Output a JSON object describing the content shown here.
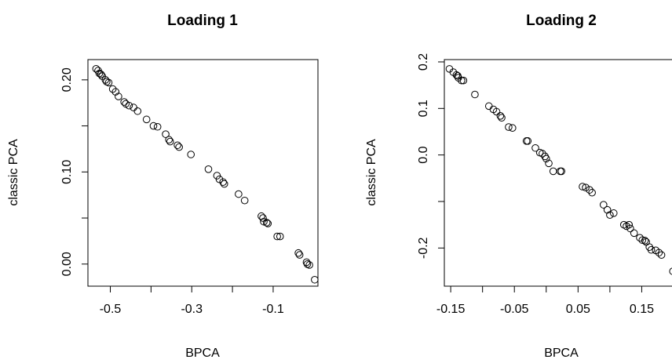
{
  "chart_data": [
    {
      "type": "scatter",
      "title": "Loading 1",
      "xlabel": "BPCA",
      "ylabel": "classic PCA",
      "xlim": [
        -0.555,
        0.01
      ],
      "ylim": [
        -0.024,
        0.222
      ],
      "xticks": [
        -0.5,
        -0.3,
        -0.1
      ],
      "xtick_labels": [
        "-0.5",
        "-0.3",
        "-0.1"
      ],
      "yticks": [
        0.0,
        0.1,
        0.2
      ],
      "ytick_labels": [
        "0.00",
        "0.10",
        "0.20"
      ],
      "grid": false,
      "legend": "none",
      "points": [
        [
          -0.535,
          0.212
        ],
        [
          -0.53,
          0.21
        ],
        [
          -0.527,
          0.207
        ],
        [
          -0.523,
          0.206
        ],
        [
          -0.52,
          0.204
        ],
        [
          -0.512,
          0.2
        ],
        [
          -0.509,
          0.198
        ],
        [
          -0.504,
          0.197
        ],
        [
          -0.494,
          0.19
        ],
        [
          -0.487,
          0.187
        ],
        [
          -0.48,
          0.182
        ],
        [
          -0.466,
          0.176
        ],
        [
          -0.462,
          0.174
        ],
        [
          -0.454,
          0.172
        ],
        [
          -0.443,
          0.17
        ],
        [
          -0.433,
          0.166
        ],
        [
          -0.411,
          0.157
        ],
        [
          -0.394,
          0.15
        ],
        [
          -0.384,
          0.149
        ],
        [
          -0.364,
          0.141
        ],
        [
          -0.356,
          0.135
        ],
        [
          -0.353,
          0.133
        ],
        [
          -0.335,
          0.129
        ],
        [
          -0.331,
          0.127
        ],
        [
          -0.302,
          0.119
        ],
        [
          -0.259,
          0.103
        ],
        [
          -0.238,
          0.096
        ],
        [
          -0.232,
          0.092
        ],
        [
          -0.223,
          0.089
        ],
        [
          -0.22,
          0.087
        ],
        [
          -0.185,
          0.076
        ],
        [
          -0.17,
          0.069
        ],
        [
          -0.129,
          0.052
        ],
        [
          -0.125,
          0.05
        ],
        [
          -0.123,
          0.046
        ],
        [
          -0.116,
          0.045
        ],
        [
          -0.113,
          0.044
        ],
        [
          -0.09,
          0.03
        ],
        [
          -0.083,
          0.03
        ],
        [
          -0.038,
          0.012
        ],
        [
          -0.035,
          0.01
        ],
        [
          -0.018,
          0.002
        ],
        [
          -0.016,
          0.0
        ],
        [
          -0.011,
          -0.001
        ],
        [
          0.002,
          -0.017
        ]
      ]
    },
    {
      "type": "scatter",
      "title": "Loading 2",
      "xlabel": "BPCA",
      "ylabel": "classic PCA",
      "xlim": [
        -0.16,
        0.2
      ],
      "ylim": [
        -0.282,
        0.205
      ],
      "xticks": [
        -0.15,
        -0.05,
        0.05,
        0.15
      ],
      "xtick_labels": [
        "-0.15",
        "-0.05",
        "0.05",
        "0.15"
      ],
      "yticks": [
        -0.2,
        0.0,
        0.1,
        0.2
      ],
      "ytick_labels": [
        "-0.2",
        "0.0",
        "0.1",
        "0.2"
      ],
      "grid": false,
      "legend": "none",
      "points": [
        [
          -0.152,
          0.185
        ],
        [
          -0.146,
          0.178
        ],
        [
          -0.141,
          0.172
        ],
        [
          -0.139,
          0.17
        ],
        [
          -0.138,
          0.166
        ],
        [
          -0.133,
          0.16
        ],
        [
          -0.13,
          0.16
        ],
        [
          -0.112,
          0.13
        ],
        [
          -0.09,
          0.105
        ],
        [
          -0.083,
          0.098
        ],
        [
          -0.078,
          0.093
        ],
        [
          -0.072,
          0.084
        ],
        [
          -0.07,
          0.08
        ],
        [
          -0.059,
          0.06
        ],
        [
          -0.053,
          0.058
        ],
        [
          -0.031,
          0.03
        ],
        [
          -0.029,
          0.03
        ],
        [
          -0.017,
          0.015
        ],
        [
          -0.01,
          0.005
        ],
        [
          -0.006,
          0.003
        ],
        [
          -0.002,
          -0.003
        ],
        [
          0.0,
          -0.008
        ],
        [
          0.004,
          -0.018
        ],
        [
          0.011,
          -0.035
        ],
        [
          0.022,
          -0.035
        ],
        [
          0.024,
          -0.035
        ],
        [
          0.057,
          -0.068
        ],
        [
          0.062,
          -0.07
        ],
        [
          0.068,
          -0.075
        ],
        [
          0.072,
          -0.081
        ],
        [
          0.09,
          -0.107
        ],
        [
          0.096,
          -0.118
        ],
        [
          0.1,
          -0.129
        ],
        [
          0.106,
          -0.125
        ],
        [
          0.122,
          -0.15
        ],
        [
          0.126,
          -0.153
        ],
        [
          0.13,
          -0.15
        ],
        [
          0.132,
          -0.158
        ],
        [
          0.138,
          -0.168
        ],
        [
          0.147,
          -0.178
        ],
        [
          0.151,
          -0.183
        ],
        [
          0.155,
          -0.184
        ],
        [
          0.157,
          -0.187
        ],
        [
          0.162,
          -0.198
        ],
        [
          0.165,
          -0.204
        ],
        [
          0.172,
          -0.205
        ],
        [
          0.177,
          -0.21
        ],
        [
          0.181,
          -0.215
        ],
        [
          0.199,
          -0.25
        ]
      ]
    }
  ]
}
